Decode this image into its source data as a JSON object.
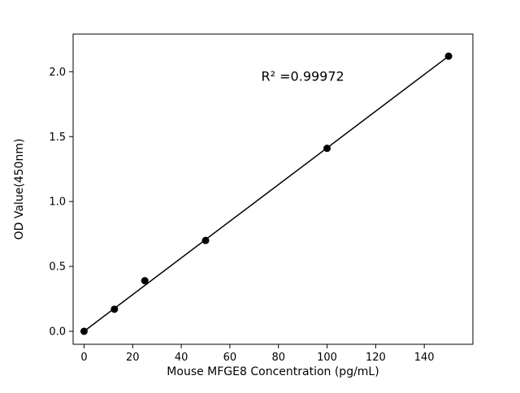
{
  "chart_data": {
    "type": "scatter",
    "title": "",
    "xlabel": "Mouse MFGE8 Concentration (pg/mL)",
    "ylabel": "OD Value(450nm)",
    "x": [
      0,
      12.5,
      25,
      50,
      100,
      150
    ],
    "y": [
      0.0,
      0.17,
      0.39,
      0.7,
      1.41,
      2.12
    ],
    "fit_line": {
      "x1": 0,
      "y1": 0.0,
      "x2": 150,
      "y2": 2.12
    },
    "annotation": {
      "text": "R² =0.99972",
      "x": 90,
      "y": 1.93
    },
    "xlim": [
      -4.5,
      160
    ],
    "ylim": [
      -0.1,
      2.29
    ],
    "xticks": [
      0,
      20,
      40,
      60,
      80,
      100,
      120,
      140
    ],
    "yticks": [
      "0.0",
      "0.5",
      "1.0",
      "1.5",
      "2.0"
    ],
    "marker_color": "#000000",
    "line_color": "#000000",
    "grid": false,
    "legend_position": "none"
  }
}
